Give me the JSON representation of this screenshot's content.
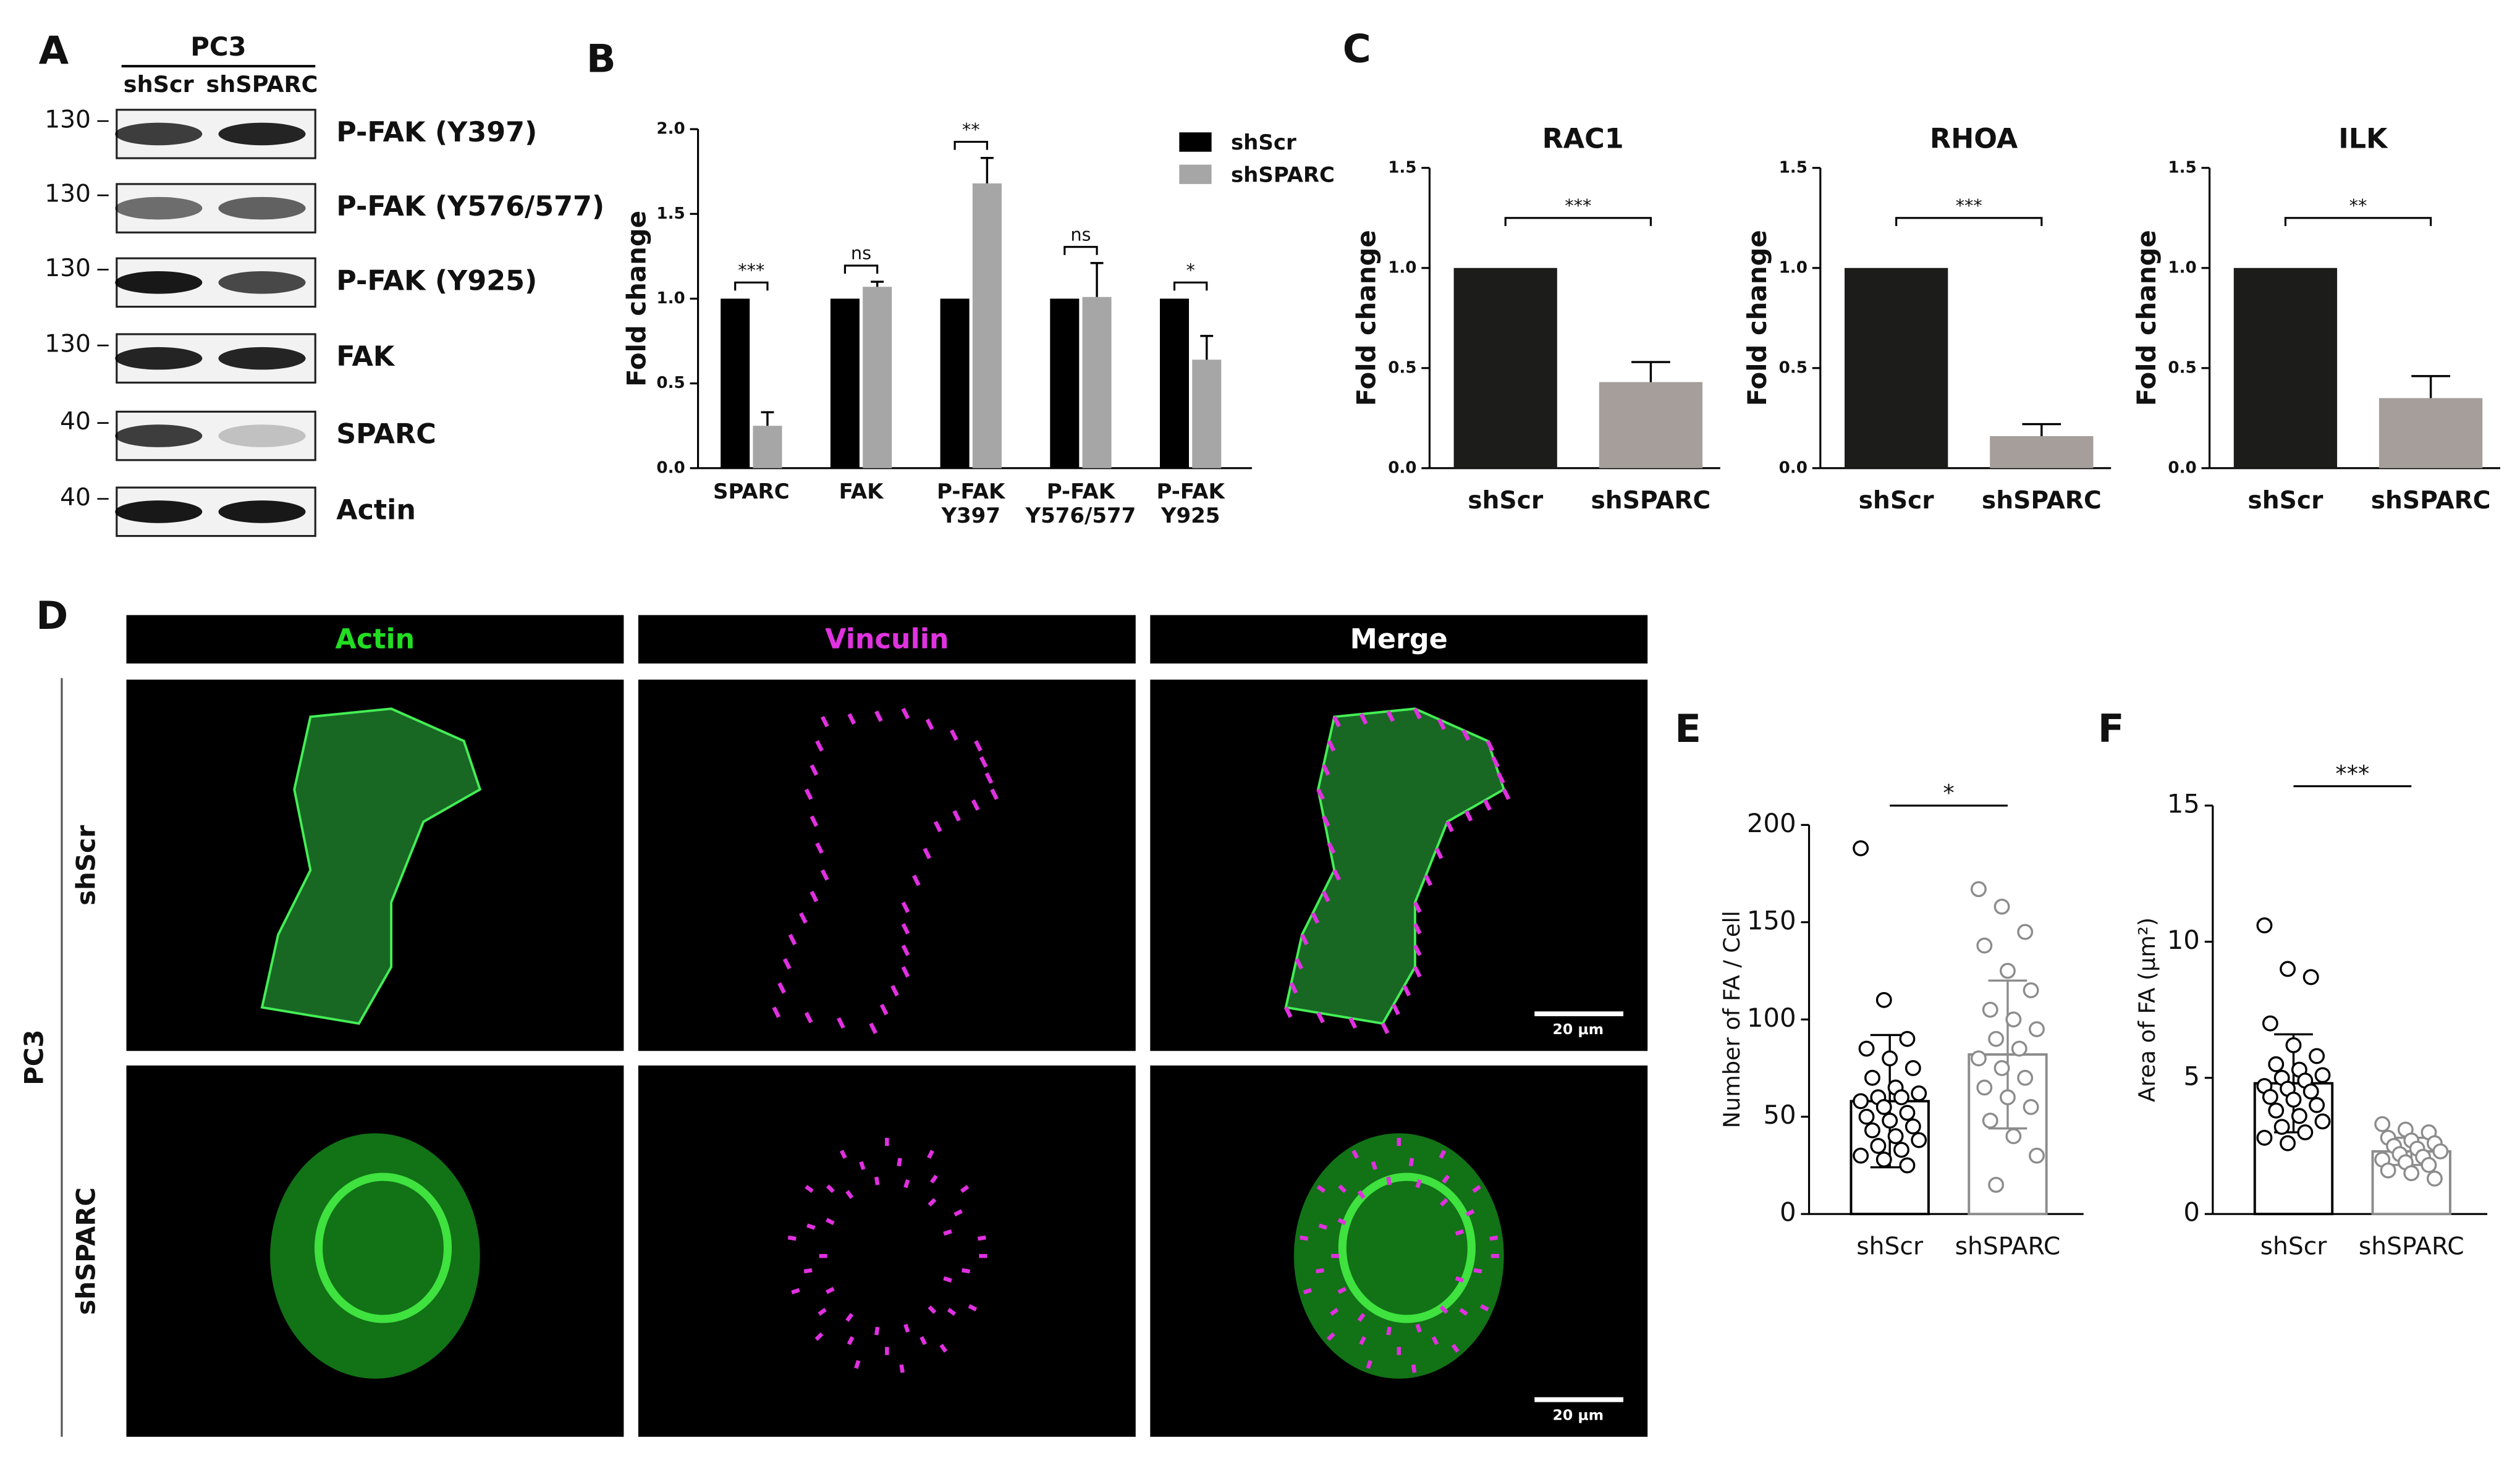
{
  "panel_labels": [
    "A",
    "B",
    "C",
    "D",
    "E",
    "F"
  ],
  "blot": {
    "cell_line": "PC3",
    "lanes": [
      "shScr",
      "shSPARC"
    ],
    "rows": [
      {
        "marker": "130",
        "label": "P-FAK (Y397)"
      },
      {
        "marker": "130",
        "label": "P-FAK (Y576/577)"
      },
      {
        "marker": "130",
        "label": "P-FAK (Y925)"
      },
      {
        "marker": "130",
        "label": "FAK"
      },
      {
        "marker": "40",
        "label": "SPARC"
      },
      {
        "marker": "40",
        "label": "Actin"
      }
    ]
  },
  "microscopy": {
    "channels": [
      "Actin",
      "Vinculin",
      "Merge"
    ],
    "channel_colors": [
      "#22dd22",
      "#e033e0",
      "#ffffff"
    ],
    "conditions": [
      "shScr",
      "shSPARC"
    ],
    "cell_line": "PC3",
    "scale_bar": "20 μm"
  },
  "chart_data": [
    {
      "type": "bar",
      "ylabel": "Fold change",
      "categories": [
        "SPARC",
        "FAK",
        "P-FAK\nY397",
        "P-FAK\nY576/577",
        "P-FAK\nY925"
      ],
      "series": [
        {
          "name": "shScr",
          "color": "#000000",
          "values": [
            1,
            1,
            1,
            1,
            1
          ]
        },
        {
          "name": "shSPARC",
          "color": "#a6a6a6",
          "values": [
            0.25,
            1.07,
            1.68,
            1.01,
            0.64
          ],
          "errors": [
            0.08,
            0.03,
            0.15,
            0.2,
            0.14
          ]
        }
      ],
      "significance": [
        "***",
        "ns",
        "**",
        "ns",
        "*"
      ],
      "ylim": [
        0,
        2
      ],
      "yticks": [
        {
          "value": 0,
          "label": "0.0"
        },
        {
          "value": 0.5,
          "label": "0.5"
        },
        {
          "value": 1,
          "label": "1.0"
        },
        {
          "value": 1.5,
          "label": "1.5"
        },
        {
          "value": 2,
          "label": "2.0"
        }
      ],
      "legend": "top-right"
    },
    {
      "type": "bar",
      "title": "RAC1",
      "ylabel": "Fold change",
      "categories": [
        "shScr",
        "shSPARC"
      ],
      "values": [
        1,
        0.43
      ],
      "errors": [
        null,
        0.1
      ],
      "colors": [
        "#1c1c1a",
        "#a59e9a"
      ],
      "significance": "***",
      "ylim": [
        0,
        1.5
      ],
      "yticks": [
        {
          "value": 0,
          "label": "0.0"
        },
        {
          "value": 0.5,
          "label": "0.5"
        },
        {
          "value": 1,
          "label": "1.0"
        },
        {
          "value": 1.5,
          "label": "1.5"
        }
      ]
    },
    {
      "type": "bar",
      "title": "RHOA",
      "ylabel": "Fold change",
      "categories": [
        "shScr",
        "shSPARC"
      ],
      "values": [
        1,
        0.16
      ],
      "errors": [
        null,
        0.06
      ],
      "colors": [
        "#1c1c1a",
        "#a59e9a"
      ],
      "significance": "***",
      "ylim": [
        0,
        1.5
      ],
      "yticks": [
        {
          "value": 0,
          "label": "0.0"
        },
        {
          "value": 0.5,
          "label": "0.5"
        },
        {
          "value": 1,
          "label": "1.0"
        },
        {
          "value": 1.5,
          "label": "1.5"
        }
      ]
    },
    {
      "type": "bar",
      "title": "ILK",
      "ylabel": "Fold change",
      "categories": [
        "shScr",
        "shSPARC"
      ],
      "values": [
        1,
        0.35
      ],
      "errors": [
        null,
        0.11
      ],
      "colors": [
        "#1c1c1a",
        "#a59e9a"
      ],
      "significance": "**",
      "ylim": [
        0,
        1.5
      ],
      "yticks": [
        {
          "value": 0,
          "label": "0.0"
        },
        {
          "value": 0.5,
          "label": "0.5"
        },
        {
          "value": 1,
          "label": "1.0"
        },
        {
          "value": 1.5,
          "label": "1.5"
        }
      ]
    },
    {
      "type": "bar",
      "ylabel": "Number of FA / Cell",
      "categories": [
        "shScr",
        "shSPARC"
      ],
      "values": [
        58,
        82
      ],
      "errors": [
        34,
        38
      ],
      "colors": [
        "#000000",
        "#8c8c8c"
      ],
      "fill": "#ffffff",
      "points": [
        [
          188,
          110,
          90,
          85,
          80,
          75,
          70,
          65,
          62,
          60,
          60,
          58,
          55,
          52,
          50,
          48,
          45,
          43,
          40,
          38,
          35,
          33,
          30,
          28,
          25
        ],
        [
          167,
          158,
          145,
          138,
          125,
          115,
          105,
          100,
          95,
          90,
          85,
          80,
          75,
          70,
          65,
          60,
          55,
          48,
          40,
          30,
          15
        ]
      ],
      "significance": "*",
      "ylim": [
        0,
        200
      ],
      "yticks": [
        0,
        50,
        100,
        150,
        200
      ]
    },
    {
      "type": "bar",
      "ylabel": "Area of FA (μm²)",
      "categories": [
        "shScr",
        "shSPARC"
      ],
      "values": [
        4.8,
        2.3
      ],
      "errors": [
        1.8,
        0.5
      ],
      "colors": [
        "#000000",
        "#8c8c8c"
      ],
      "fill": "#ffffff",
      "points": [
        [
          10.6,
          9,
          8.7,
          7,
          6.2,
          5.8,
          5.5,
          5.3,
          5.1,
          5,
          4.9,
          4.7,
          4.6,
          4.5,
          4.3,
          4.2,
          4,
          3.8,
          3.6,
          3.4,
          3.2,
          3,
          2.8,
          2.6
        ],
        [
          3.3,
          3.1,
          3,
          2.8,
          2.7,
          2.6,
          2.5,
          2.4,
          2.3,
          2.2,
          2.1,
          2,
          1.9,
          1.8,
          1.6,
          1.5,
          1.3
        ]
      ],
      "significance": "***",
      "ylim": [
        0,
        15
      ],
      "yticks": [
        0,
        5,
        10,
        15
      ]
    }
  ]
}
